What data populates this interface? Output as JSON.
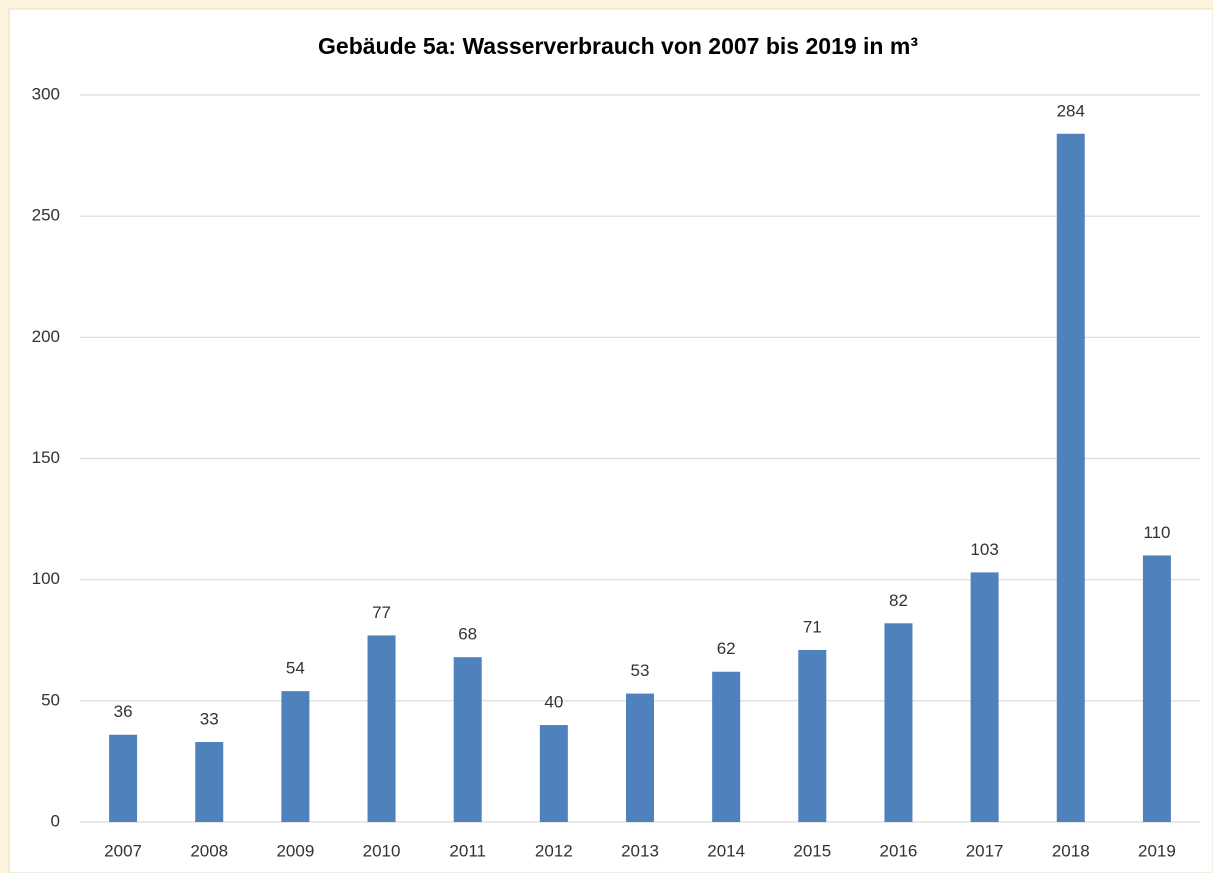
{
  "chart_data": {
    "type": "bar",
    "title": "Gebäude 5a: Wasserverbrauch von 2007 bis 2019 in m³",
    "categories": [
      "2007",
      "2008",
      "2009",
      "2010",
      "2011",
      "2012",
      "2013",
      "2014",
      "2015",
      "2016",
      "2017",
      "2018",
      "2019"
    ],
    "values": [
      36,
      33,
      54,
      77,
      68,
      40,
      53,
      62,
      71,
      82,
      103,
      284,
      110
    ],
    "color": "#4f81bd",
    "ylim": [
      0,
      300
    ],
    "yticks": [
      0,
      50,
      100,
      150,
      200,
      250,
      300
    ],
    "grid": true
  }
}
